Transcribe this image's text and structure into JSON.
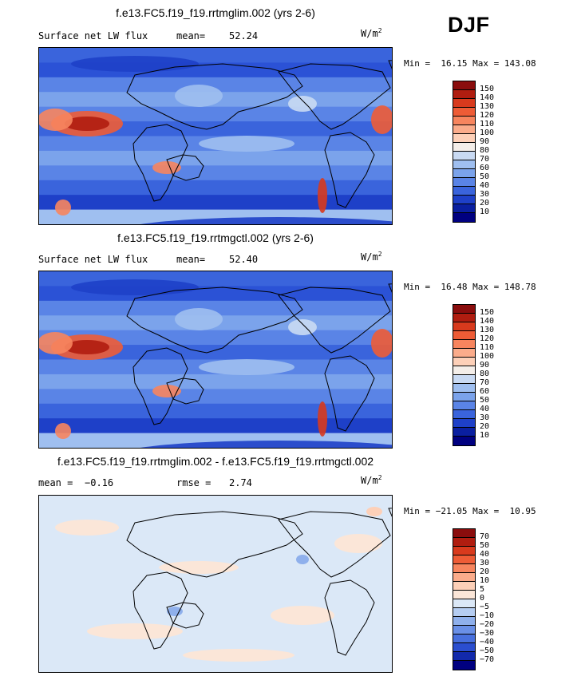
{
  "season": "DJF",
  "chart_data": [
    {
      "type": "heatmap",
      "title": "f.e13.FC5.f19_f19.rrtmglim.002 (yrs 2-6)",
      "variable": "Surface net LW flux",
      "stat_label": "mean=",
      "stat_value": "52.24",
      "units": "W/m",
      "units_exp": "2",
      "min": "16.15",
      "max": "143.08",
      "minmax_text": "Min =  16.15 Max = 143.08",
      "levels": [
        "150",
        "140",
        "130",
        "120",
        "110",
        "100",
        "90",
        "80",
        "70",
        "60",
        "50",
        "40",
        "30",
        "20",
        "10"
      ],
      "colors": [
        "#8a0d0d",
        "#b01d10",
        "#d83a1d",
        "#ee5c36",
        "#f7855e",
        "#fbac8b",
        "#fdd0b8",
        "#f4eee9",
        "#c9daf3",
        "#9fbff0",
        "#7ba3eb",
        "#5a84e6",
        "#3a64dc",
        "#1e40c8",
        "#0a1fa0",
        "#000080"
      ]
    },
    {
      "type": "heatmap",
      "title": "f.e13.FC5.f19_f19.rrtmgctl.002 (yrs 2-6)",
      "variable": "Surface net LW flux",
      "stat_label": "mean=",
      "stat_value": "52.40",
      "units": "W/m",
      "units_exp": "2",
      "min": "16.48",
      "max": "148.78",
      "minmax_text": "Min =  16.48 Max = 148.78",
      "levels": [
        "150",
        "140",
        "130",
        "120",
        "110",
        "100",
        "90",
        "80",
        "70",
        "60",
        "50",
        "40",
        "30",
        "20",
        "10"
      ],
      "colors": [
        "#8a0d0d",
        "#b01d10",
        "#d83a1d",
        "#ee5c36",
        "#f7855e",
        "#fbac8b",
        "#fdd0b8",
        "#f4eee9",
        "#c9daf3",
        "#9fbff0",
        "#7ba3eb",
        "#5a84e6",
        "#3a64dc",
        "#1e40c8",
        "#0a1fa0",
        "#000080"
      ]
    },
    {
      "type": "heatmap",
      "title": "f.e13.FC5.f19_f19.rrtmglim.002 - f.e13.FC5.f19_f19.rrtmgctl.002",
      "stat1_label": "mean =",
      "stat1_value": "−0.16",
      "stat2_label": "rmse =",
      "stat2_value": "2.74",
      "units": "W/m",
      "units_exp": "2",
      "min": "−21.05",
      "max": "10.95",
      "minmax_text": "Min = −21.05 Max =  10.95",
      "levels": [
        "70",
        "50",
        "40",
        "30",
        "20",
        "10",
        "5",
        "0",
        "−5",
        "−10",
        "−20",
        "−30",
        "−40",
        "−50",
        "−70"
      ],
      "colors": [
        "#8a0d0d",
        "#b01d10",
        "#d83a1d",
        "#ee5c36",
        "#f7855e",
        "#fbac8b",
        "#fdd0b8",
        "#fbe6d8",
        "#dbe8f7",
        "#b5cdf2",
        "#8fb0ec",
        "#6a90e7",
        "#4870de",
        "#2b4ecf",
        "#1229ab",
        "#000080"
      ]
    }
  ]
}
